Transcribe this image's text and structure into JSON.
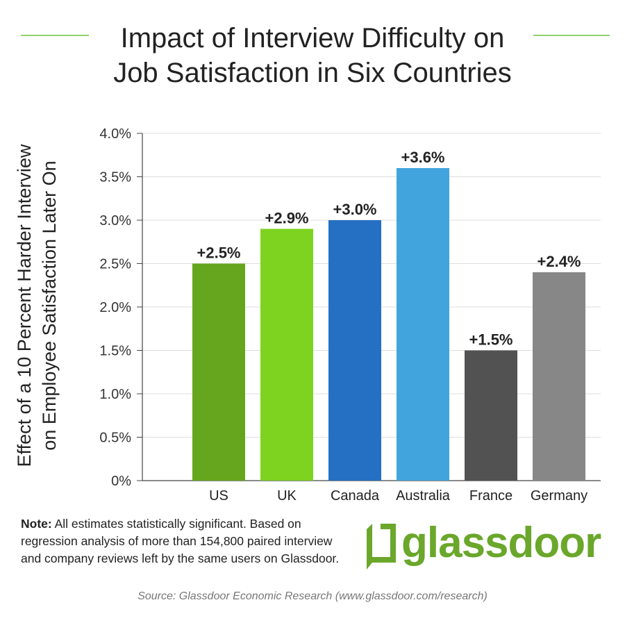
{
  "colors": {
    "accent_rule": "#8fd26f",
    "brand_green": "#6aa72a",
    "text": "#222222",
    "source_text": "#777777",
    "grid": "#dddddd"
  },
  "note": {
    "label": "Note:",
    "text": " All estimates statistically significant. Based on regression analysis of more than 154,800 paired interview and company reviews left by the same users on Glassdoor."
  },
  "logo": {
    "word": "glassdoor",
    "registered": "®",
    "icon": "glassdoor-door-icon"
  },
  "source": "Source: Glassdoor Economic Research (www.glassdoor.com/research)",
  "chart_data": {
    "type": "bar",
    "title_lines": [
      "Impact of Interview Difficulty on",
      "Job Satisfaction in Six Countries"
    ],
    "ylabel_lines": [
      "Effect of a 10 Percent Harder Interview",
      "on Employee Satisfaction Later On"
    ],
    "xlabel": "",
    "categories": [
      "US",
      "UK",
      "Canada",
      "Australia",
      "France",
      "Germany"
    ],
    "values": [
      2.5,
      2.9,
      3.0,
      3.6,
      1.5,
      2.4
    ],
    "data_labels": [
      "+2.5%",
      "+2.9%",
      "+3.0%",
      "+3.6%",
      "+1.5%",
      "+2.4%"
    ],
    "bar_colors": [
      "#66a61e",
      "#7ed321",
      "#2570c2",
      "#41a4dd",
      "#525252",
      "#878787"
    ],
    "ylim": [
      0,
      4.0
    ],
    "yticks": [
      0,
      0.5,
      1.0,
      1.5,
      2.0,
      2.5,
      3.0,
      3.5,
      4.0
    ],
    "ytick_labels": [
      "0%",
      "0.5%",
      "1.0%",
      "1.5%",
      "2.0%",
      "2.5%",
      "3.0%",
      "3.5%",
      "4.0%"
    ],
    "grid": true,
    "legend": "none"
  }
}
